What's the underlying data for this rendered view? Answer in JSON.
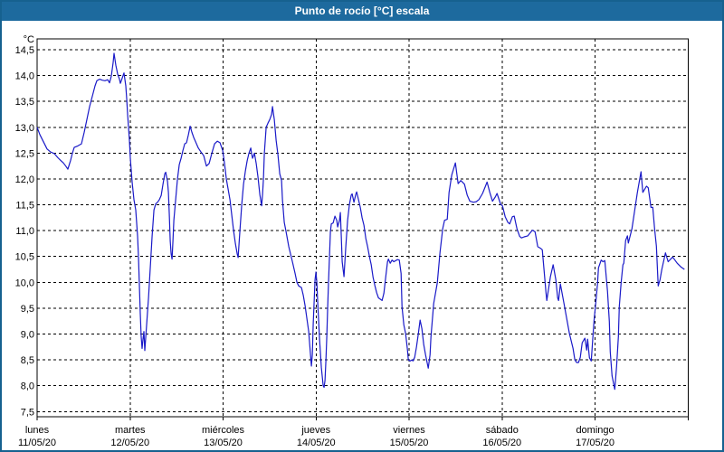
{
  "title": "Punto de rocío [°C] escala",
  "colors": {
    "titlebar_bg": "#1d6a9e",
    "titlebar_text": "#ffffff",
    "window_border": "#16618f",
    "plot_background": "#ffffff",
    "grid": "#000000",
    "axis_text": "#000000",
    "line": "#1a1ac8"
  },
  "chart_data": {
    "type": "line",
    "title": "Punto de rocío [°C] escala",
    "series_name": "Punto de rocío",
    "y_unit_label": "°C",
    "ylim": [
      7.5,
      14.5
    ],
    "y_tick_step": 0.5,
    "y_tick_values": [
      14.5,
      14.0,
      13.5,
      13.0,
      12.5,
      12.0,
      11.5,
      11.0,
      10.5,
      10.0,
      9.5,
      9.0,
      8.5,
      8.0,
      7.5
    ],
    "decimal_separator": ",",
    "grid": "dashed",
    "legend": "none",
    "x_labels": [
      {
        "day": "lunes",
        "date": "11/05/20"
      },
      {
        "day": "martes",
        "date": "12/05/20"
      },
      {
        "day": "miércoles",
        "date": "13/05/20"
      },
      {
        "day": "jueves",
        "date": "14/05/20"
      },
      {
        "day": "viernes",
        "date": "15/05/20"
      },
      {
        "day": "sábado",
        "date": "16/05/20"
      },
      {
        "day": "domingo",
        "date": "17/05/20"
      }
    ],
    "x_span_days": 7,
    "x_unit_note": "x = offset units, 719 units = 7 days (≈0.2337 h per unit), 0 = lunes 11/05/20 00:00",
    "points": [
      [
        0,
        13.0
      ],
      [
        3,
        12.86
      ],
      [
        7,
        12.72
      ],
      [
        11,
        12.58
      ],
      [
        15,
        12.52
      ],
      [
        19,
        12.49
      ],
      [
        23,
        12.41
      ],
      [
        26,
        12.36
      ],
      [
        29,
        12.31
      ],
      [
        32,
        12.24
      ],
      [
        34,
        12.19
      ],
      [
        37,
        12.36
      ],
      [
        39,
        12.5
      ],
      [
        41,
        12.61
      ],
      [
        45,
        12.64
      ],
      [
        49,
        12.68
      ],
      [
        52,
        12.9
      ],
      [
        55,
        13.15
      ],
      [
        58,
        13.4
      ],
      [
        61,
        13.6
      ],
      [
        64,
        13.8
      ],
      [
        66,
        13.9
      ],
      [
        69,
        13.93
      ],
      [
        72,
        13.91
      ],
      [
        75,
        13.9
      ],
      [
        78,
        13.92
      ],
      [
        80,
        13.86
      ],
      [
        82,
        13.99
      ],
      [
        84,
        14.25
      ],
      [
        85,
        14.43
      ],
      [
        87,
        14.2
      ],
      [
        89,
        14.03
      ],
      [
        91,
        13.93
      ],
      [
        92,
        13.85
      ],
      [
        94,
        13.95
      ],
      [
        96,
        14.05
      ],
      [
        98,
        13.8
      ],
      [
        99,
        13.55
      ],
      [
        100,
        13.25
      ],
      [
        101,
        13.0
      ],
      [
        102,
        12.75
      ],
      [
        103,
        12.4
      ],
      [
        104,
        12.17
      ],
      [
        105,
        11.94
      ],
      [
        107,
        11.6
      ],
      [
        109,
        11.4
      ],
      [
        111,
        10.9
      ],
      [
        112,
        10.5
      ],
      [
        113,
        9.95
      ],
      [
        114,
        9.4
      ],
      [
        115,
        8.95
      ],
      [
        116,
        8.72
      ],
      [
        117,
        8.9
      ],
      [
        118,
        9.05
      ],
      [
        119,
        8.68
      ],
      [
        121,
        9.2
      ],
      [
        123,
        9.7
      ],
      [
        125,
        10.3
      ],
      [
        127,
        10.9
      ],
      [
        129,
        11.4
      ],
      [
        131,
        11.52
      ],
      [
        133,
        11.55
      ],
      [
        135,
        11.6
      ],
      [
        137,
        11.68
      ],
      [
        139,
        11.9
      ],
      [
        141,
        12.1
      ],
      [
        142,
        12.13
      ],
      [
        144,
        11.95
      ],
      [
        145,
        11.74
      ],
      [
        146,
        11.3
      ],
      [
        147,
        10.8
      ],
      [
        148,
        10.55
      ],
      [
        149,
        10.45
      ],
      [
        150,
        10.8
      ],
      [
        151,
        11.2
      ],
      [
        153,
        11.6
      ],
      [
        155,
        12.0
      ],
      [
        157,
        12.28
      ],
      [
        159,
        12.4
      ],
      [
        161,
        12.55
      ],
      [
        163,
        12.68
      ],
      [
        165,
        12.7
      ],
      [
        167,
        12.85
      ],
      [
        169,
        13.02
      ],
      [
        171,
        12.9
      ],
      [
        173,
        12.8
      ],
      [
        175,
        12.72
      ],
      [
        178,
        12.6
      ],
      [
        181,
        12.52
      ],
      [
        184,
        12.45
      ],
      [
        187,
        12.25
      ],
      [
        190,
        12.3
      ],
      [
        193,
        12.5
      ],
      [
        196,
        12.68
      ],
      [
        199,
        12.73
      ],
      [
        202,
        12.7
      ],
      [
        205,
        12.55
      ],
      [
        207,
        12.3
      ],
      [
        209,
        12.0
      ],
      [
        211,
        11.8
      ],
      [
        213,
        11.6
      ],
      [
        215,
        11.3
      ],
      [
        217,
        11.0
      ],
      [
        219,
        10.75
      ],
      [
        221,
        10.55
      ],
      [
        222,
        10.48
      ],
      [
        224,
        11.0
      ],
      [
        226,
        11.5
      ],
      [
        228,
        11.9
      ],
      [
        230,
        12.15
      ],
      [
        232,
        12.35
      ],
      [
        234,
        12.5
      ],
      [
        236,
        12.6
      ],
      [
        237,
        12.48
      ],
      [
        238,
        12.4
      ],
      [
        240,
        12.5
      ],
      [
        242,
        12.3
      ],
      [
        244,
        12.03
      ],
      [
        246,
        11.7
      ],
      [
        248,
        11.48
      ],
      [
        249,
        11.7
      ],
      [
        250,
        12.0
      ],
      [
        251,
        12.5
      ],
      [
        253,
        13.0
      ],
      [
        255,
        13.08
      ],
      [
        257,
        13.15
      ],
      [
        259,
        13.25
      ],
      [
        260,
        13.4
      ],
      [
        262,
        13.15
      ],
      [
        264,
        12.75
      ],
      [
        266,
        12.47
      ],
      [
        268,
        12.1
      ],
      [
        270,
        11.97
      ],
      [
        271,
        11.6
      ],
      [
        273,
        11.16
      ],
      [
        275,
        10.98
      ],
      [
        278,
        10.69
      ],
      [
        282,
        10.4
      ],
      [
        285,
        10.17
      ],
      [
        287,
        10.0
      ],
      [
        289,
        9.93
      ],
      [
        292,
        9.9
      ],
      [
        294,
        9.75
      ],
      [
        296,
        9.55
      ],
      [
        298,
        9.3
      ],
      [
        300,
        9.05
      ],
      [
        302,
        8.6
      ],
      [
        303,
        8.38
      ],
      [
        304,
        8.6
      ],
      [
        305,
        9.2
      ],
      [
        307,
        10.05
      ],
      [
        308,
        10.2
      ],
      [
        309,
        10.0
      ],
      [
        310,
        9.6
      ],
      [
        312,
        8.9
      ],
      [
        314,
        8.35
      ],
      [
        316,
        8.0
      ],
      [
        317,
        7.97
      ],
      [
        318,
        8.1
      ],
      [
        319,
        8.48
      ],
      [
        320,
        8.95
      ],
      [
        321,
        9.53
      ],
      [
        322,
        10.05
      ],
      [
        323,
        10.52
      ],
      [
        324,
        10.98
      ],
      [
        325,
        11.13
      ],
      [
        327,
        11.15
      ],
      [
        329,
        11.28
      ],
      [
        331,
        11.2
      ],
      [
        332,
        11.07
      ],
      [
        334,
        11.2
      ],
      [
        335,
        11.35
      ],
      [
        336,
        10.9
      ],
      [
        337,
        10.4
      ],
      [
        339,
        10.11
      ],
      [
        341,
        10.69
      ],
      [
        343,
        11.2
      ],
      [
        345,
        11.51
      ],
      [
        347,
        11.69
      ],
      [
        348,
        11.71
      ],
      [
        350,
        11.55
      ],
      [
        352,
        11.7
      ],
      [
        353,
        11.75
      ],
      [
        355,
        11.6
      ],
      [
        357,
        11.45
      ],
      [
        359,
        11.25
      ],
      [
        361,
        11.1
      ],
      [
        363,
        10.85
      ],
      [
        365,
        10.69
      ],
      [
        367,
        10.5
      ],
      [
        369,
        10.34
      ],
      [
        371,
        10.1
      ],
      [
        373,
        9.94
      ],
      [
        375,
        9.8
      ],
      [
        377,
        9.7
      ],
      [
        381,
        9.65
      ],
      [
        383,
        9.79
      ],
      [
        385,
        10.1
      ],
      [
        387,
        10.4
      ],
      [
        388,
        10.45
      ],
      [
        390,
        10.37
      ],
      [
        392,
        10.43
      ],
      [
        394,
        10.4
      ],
      [
        396,
        10.42
      ],
      [
        398,
        10.44
      ],
      [
        400,
        10.43
      ],
      [
        402,
        10.17
      ],
      [
        403,
        9.53
      ],
      [
        405,
        9.18
      ],
      [
        407,
        9.01
      ],
      [
        409,
        8.7
      ],
      [
        410,
        8.5
      ],
      [
        412,
        8.48
      ],
      [
        414,
        8.5
      ],
      [
        415,
        8.48
      ],
      [
        417,
        8.55
      ],
      [
        419,
        8.75
      ],
      [
        421,
        9.0
      ],
      [
        423,
        9.27
      ],
      [
        425,
        9.1
      ],
      [
        427,
        8.8
      ],
      [
        429,
        8.6
      ],
      [
        432,
        8.34
      ],
      [
        434,
        8.6
      ],
      [
        435,
        8.95
      ],
      [
        438,
        9.59
      ],
      [
        442,
        9.99
      ],
      [
        445,
        10.58
      ],
      [
        448,
        11.04
      ],
      [
        450,
        11.2
      ],
      [
        453,
        11.22
      ],
      [
        455,
        11.74
      ],
      [
        458,
        12.08
      ],
      [
        462,
        12.31
      ],
      [
        465,
        11.91
      ],
      [
        468,
        11.97
      ],
      [
        472,
        11.9
      ],
      [
        475,
        11.69
      ],
      [
        478,
        11.57
      ],
      [
        482,
        11.55
      ],
      [
        485,
        11.56
      ],
      [
        488,
        11.6
      ],
      [
        492,
        11.72
      ],
      [
        495,
        11.85
      ],
      [
        497,
        11.94
      ],
      [
        500,
        11.74
      ],
      [
        503,
        11.57
      ],
      [
        506,
        11.65
      ],
      [
        508,
        11.72
      ],
      [
        512,
        11.51
      ],
      [
        514,
        11.48
      ],
      [
        517,
        11.27
      ],
      [
        520,
        11.16
      ],
      [
        522,
        11.13
      ],
      [
        525,
        11.27
      ],
      [
        527,
        11.28
      ],
      [
        530,
        11.04
      ],
      [
        533,
        10.89
      ],
      [
        535,
        10.86
      ],
      [
        538,
        10.88
      ],
      [
        542,
        10.9
      ],
      [
        547,
        11.01
      ],
      [
        550,
        10.98
      ],
      [
        553,
        10.69
      ],
      [
        556,
        10.66
      ],
      [
        558,
        10.63
      ],
      [
        560,
        10.23
      ],
      [
        562,
        9.82
      ],
      [
        563,
        9.65
      ],
      [
        567,
        10.11
      ],
      [
        570,
        10.34
      ],
      [
        573,
        10.05
      ],
      [
        575,
        9.7
      ],
      [
        576,
        9.65
      ],
      [
        578,
        9.97
      ],
      [
        582,
        9.59
      ],
      [
        585,
        9.3
      ],
      [
        588,
        9.01
      ],
      [
        592,
        8.72
      ],
      [
        594,
        8.5
      ],
      [
        596,
        8.45
      ],
      [
        598,
        8.45
      ],
      [
        600,
        8.55
      ],
      [
        602,
        8.83
      ],
      [
        605,
        8.92
      ],
      [
        607,
        8.69
      ],
      [
        608,
        8.9
      ],
      [
        610,
        8.54
      ],
      [
        612,
        8.48
      ],
      [
        615,
        9.24
      ],
      [
        617,
        9.6
      ],
      [
        619,
        9.99
      ],
      [
        620,
        10.28
      ],
      [
        623,
        10.43
      ],
      [
        625,
        10.4
      ],
      [
        627,
        10.42
      ],
      [
        630,
        9.82
      ],
      [
        632,
        9.24
      ],
      [
        633,
        8.66
      ],
      [
        635,
        8.19
      ],
      [
        638,
        7.93
      ],
      [
        640,
        8.37
      ],
      [
        642,
        8.95
      ],
      [
        643,
        9.53
      ],
      [
        645,
        9.99
      ],
      [
        647,
        10.34
      ],
      [
        648,
        10.37
      ],
      [
        650,
        10.81
      ],
      [
        652,
        10.9
      ],
      [
        653,
        10.76
      ],
      [
        657,
        11.04
      ],
      [
        660,
        11.39
      ],
      [
        663,
        11.74
      ],
      [
        667,
        12.14
      ],
      [
        669,
        11.74
      ],
      [
        673,
        11.86
      ],
      [
        675,
        11.83
      ],
      [
        678,
        11.45
      ],
      [
        680,
        11.45
      ],
      [
        682,
        11.04
      ],
      [
        684,
        10.7
      ],
      [
        686,
        9.93
      ],
      [
        688,
        10.05
      ],
      [
        690,
        10.25
      ],
      [
        694,
        10.57
      ],
      [
        697,
        10.4
      ],
      [
        702,
        10.49
      ],
      [
        707,
        10.37
      ],
      [
        711,
        10.3
      ],
      [
        715,
        10.25
      ]
    ]
  }
}
